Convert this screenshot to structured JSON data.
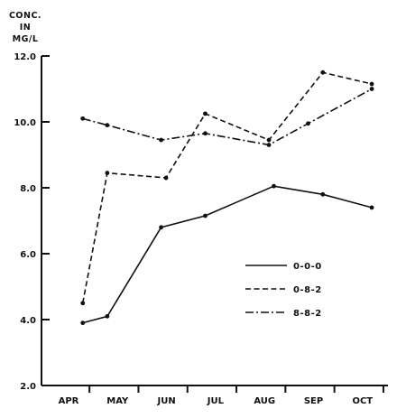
{
  "chart_data": {
    "type": "line",
    "title": "",
    "ylabel_lines": [
      "CONC.",
      "IN",
      "MG/L"
    ],
    "xlabel": "",
    "ylim": [
      2.0,
      12.0
    ],
    "yticks": [
      2.0,
      4.0,
      6.0,
      8.0,
      10.0,
      12.0
    ],
    "ytick_labels": [
      "2.0",
      "4.0",
      "6.0",
      "8.0",
      "10.0",
      "12.0"
    ],
    "xtick_labels": [
      "APR",
      "MAY",
      "JUN",
      "JUL",
      "AUG",
      "SEP",
      "OCT"
    ],
    "x_range": [
      -0.3,
      6.55
    ],
    "grid": false,
    "legend_position": "center-right",
    "series": [
      {
        "name": "0-0-0",
        "dash": "solid",
        "points": [
          [
            0.4,
            3.9
          ],
          [
            0.9,
            4.1
          ],
          [
            2.0,
            6.8
          ],
          [
            2.9,
            7.15
          ],
          [
            4.3,
            8.05
          ],
          [
            5.3,
            7.8
          ],
          [
            6.3,
            7.4
          ]
        ]
      },
      {
        "name": "0-8-2",
        "dash": "dashed",
        "points": [
          [
            0.4,
            4.5
          ],
          [
            0.9,
            8.45
          ],
          [
            2.1,
            8.3
          ],
          [
            2.9,
            10.25
          ],
          [
            4.2,
            9.45
          ],
          [
            5.3,
            11.5
          ],
          [
            6.3,
            11.15
          ]
        ]
      },
      {
        "name": "8-8-2",
        "dash": "dashdot",
        "points": [
          [
            0.4,
            10.1
          ],
          [
            0.9,
            9.9
          ],
          [
            2.0,
            9.45
          ],
          [
            2.9,
            9.65
          ],
          [
            4.2,
            9.3
          ],
          [
            5.0,
            9.95
          ],
          [
            6.3,
            11.0
          ]
        ]
      }
    ]
  }
}
